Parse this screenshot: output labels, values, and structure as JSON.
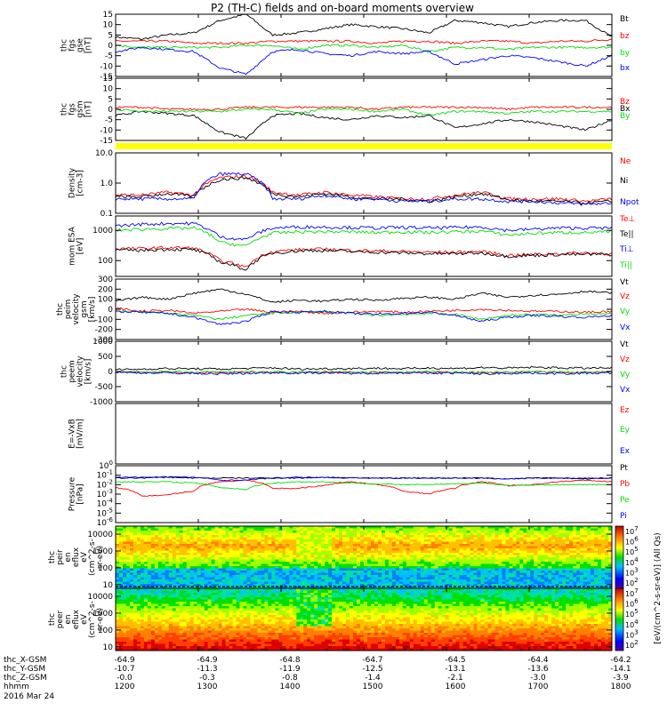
{
  "title": "P2 (TH-C) fields and on-board moments overview",
  "x_ticks": [
    "1200",
    "1300",
    "1400",
    "1500",
    "1600",
    "1700",
    "1800"
  ],
  "orbit_rows": [
    {
      "label": "thc_X-GSM",
      "values": [
        "-64.9",
        "-64.9",
        "-64.8",
        "-64.7",
        "-64.5",
        "-64.4",
        "-64.2"
      ]
    },
    {
      "label": "thc_Y-GSM",
      "values": [
        "-10.7",
        "-11.3",
        "-11.9",
        "-12.5",
        "-13.1",
        "-13.6",
        "-14.1"
      ]
    },
    {
      "label": "thc_Z-GSM",
      "values": [
        "-0.0",
        "-0.3",
        "-0.8",
        "-1.4",
        "-2.1",
        "-3.0",
        "-3.9"
      ]
    },
    {
      "label": "hhmm",
      "values": []
    }
  ],
  "date_label": "2016 Mar 24",
  "colors": {
    "black": "#000000",
    "red": "#ff0000",
    "green": "#00e000",
    "blue": "#0000ff",
    "yellow": "#ffff00"
  },
  "colorbar": {
    "label": "[eV/(cm^2-s-sr-eV)] (All Qs)",
    "upper": {
      "ticks": [
        "10^2",
        "10^3",
        "10^4",
        "10^5",
        "10^6",
        "10^7"
      ]
    },
    "lower": {
      "ticks": [
        "10^2",
        "10^3",
        "10^4",
        "10^5",
        "10^6",
        "10^7"
      ]
    }
  },
  "chart_data": [
    {
      "id": "fgs_gse",
      "type": "line",
      "ylabel": "thc fgs gse [nT]",
      "ylim": [
        -15,
        15
      ],
      "yticks": [
        "15",
        "10",
        "5",
        "0",
        "-5",
        "-10",
        "-15"
      ],
      "series": [
        {
          "name": "Bt",
          "color": "#000000",
          "values": [
            4,
            3,
            5,
            6,
            12,
            15,
            5,
            6,
            8,
            10,
            9,
            8,
            6,
            12,
            11,
            9,
            11,
            12,
            12,
            4
          ]
        },
        {
          "name": "bz",
          "color": "#ff0000",
          "values": [
            2,
            2,
            2,
            1,
            1,
            1,
            2,
            2,
            2,
            2,
            1,
            2,
            2,
            1,
            2,
            2,
            1,
            2,
            2,
            3
          ]
        },
        {
          "name": "by",
          "color": "#00e000",
          "values": [
            0,
            -1,
            -1,
            -1,
            -1,
            0,
            0,
            -2,
            0,
            0,
            -1,
            0,
            -3,
            -1,
            -1,
            -2,
            -1,
            -1,
            -1,
            -1
          ]
        },
        {
          "name": "bx",
          "color": "#0000ff",
          "values": [
            -3,
            -1,
            -2,
            -3,
            -11,
            -14,
            -3,
            -2,
            -4,
            -5,
            -3,
            -4,
            -3,
            -9,
            -7,
            -5,
            -6,
            -8,
            -10,
            -5
          ]
        }
      ]
    },
    {
      "id": "fgs_gsm",
      "type": "line",
      "ylabel": "thc fgs gsm [nT]",
      "ylim": [
        -15,
        15
      ],
      "yticks": [
        "15",
        "10",
        "5",
        "0",
        "-5",
        "-10",
        "-15"
      ],
      "series": [
        {
          "name": "Bz",
          "color": "#ff0000",
          "values": [
            1,
            1,
            0,
            0,
            0,
            1,
            1,
            1,
            1,
            1,
            0,
            1,
            1,
            1,
            1,
            0,
            1,
            1,
            1,
            1
          ]
        },
        {
          "name": "Bx",
          "color": "#000000",
          "values": [
            -3,
            -1,
            -2,
            -3,
            -11,
            -14,
            -3,
            -2,
            -4,
            -5,
            -3,
            -4,
            -3,
            -9,
            -7,
            -5,
            -6,
            -8,
            -10,
            -5
          ]
        },
        {
          "name": "By",
          "color": "#00e000",
          "values": [
            0,
            -1,
            -1,
            -1,
            -1,
            0,
            0,
            -2,
            0,
            0,
            -1,
            0,
            -3,
            -1,
            -1,
            -2,
            -1,
            -1,
            -1,
            -1
          ]
        }
      ]
    },
    {
      "id": "density",
      "type": "line",
      "ylabel": "Density [cm-3]",
      "yscale": "log",
      "ylim": [
        0.1,
        10
      ],
      "yticks": [
        "10.0",
        "1.0",
        "0.1"
      ],
      "series": [
        {
          "name": "Ne",
          "color": "#ff0000",
          "values": [
            0.4,
            0.4,
            0.5,
            0.4,
            1.5,
            1.7,
            0.5,
            0.4,
            0.5,
            0.4,
            0.35,
            0.3,
            0.3,
            0.4,
            0.5,
            0.3,
            0.3,
            0.3,
            0.25,
            0.3
          ]
        },
        {
          "name": "Ni",
          "color": "#000000",
          "values": [
            0.35,
            0.35,
            0.45,
            0.35,
            1.3,
            1.5,
            0.45,
            0.35,
            0.45,
            0.35,
            0.3,
            0.3,
            0.25,
            0.35,
            0.45,
            0.28,
            0.25,
            0.25,
            0.22,
            0.25
          ]
        },
        {
          "name": "Npot",
          "color": "#0000ff",
          "values": [
            0.3,
            0.3,
            0.3,
            0.3,
            2.0,
            2.0,
            0.3,
            0.3,
            0.4,
            0.3,
            0.3,
            0.25,
            0.25,
            0.3,
            0.3,
            0.25,
            0.25,
            0.22,
            0.2,
            0.22
          ]
        }
      ]
    },
    {
      "id": "temperature",
      "type": "line",
      "ylabel": "mom ESA [eV]",
      "yscale": "log",
      "ylim": [
        30,
        3000
      ],
      "yticks": [
        "1000",
        "100"
      ],
      "series": [
        {
          "name": "Te⊥",
          "color": "#ff0000",
          "values": [
            250,
            250,
            270,
            260,
            100,
            60,
            200,
            230,
            240,
            220,
            210,
            200,
            190,
            190,
            200,
            150,
            160,
            170,
            180,
            170
          ]
        },
        {
          "name": "Te||",
          "color": "#000000",
          "values": [
            220,
            220,
            240,
            230,
            90,
            50,
            180,
            210,
            220,
            200,
            190,
            180,
            170,
            170,
            180,
            140,
            150,
            160,
            160,
            160
          ]
        },
        {
          "name": "Ti⊥",
          "color": "#0000ff",
          "values": [
            1400,
            1600,
            1700,
            1700,
            600,
            500,
            1200,
            1300,
            1300,
            1250,
            1200,
            1250,
            1200,
            1250,
            1300,
            1000,
            1100,
            1200,
            1200,
            1200
          ]
        },
        {
          "name": "Ti||",
          "color": "#00e000",
          "values": [
            1000,
            1100,
            1150,
            1200,
            400,
            300,
            800,
            900,
            900,
            900,
            850,
            900,
            850,
            900,
            950,
            700,
            800,
            850,
            850,
            900
          ]
        }
      ]
    },
    {
      "id": "peim_velocity",
      "type": "line",
      "ylabel": "thc peim velocity gsm [km/s]",
      "ylim": [
        -300,
        300
      ],
      "yticks": [
        "300",
        "200",
        "100",
        "0",
        "-100",
        "-200",
        "-300"
      ],
      "series": [
        {
          "name": "Vt",
          "color": "#000000",
          "values": [
            80,
            120,
            100,
            160,
            200,
            150,
            70,
            90,
            80,
            100,
            90,
            110,
            120,
            100,
            160,
            120,
            140,
            150,
            180,
            160
          ]
        },
        {
          "name": "Vz",
          "color": "#ff0000",
          "values": [
            10,
            -20,
            -10,
            -40,
            -20,
            0,
            -30,
            -20,
            -40,
            -30,
            -20,
            -30,
            -20,
            -10,
            0,
            -10,
            -20,
            -20,
            -30,
            -20
          ]
        },
        {
          "name": "Vy",
          "color": "#00e000",
          "values": [
            -20,
            -30,
            -40,
            -60,
            -100,
            -60,
            -40,
            -30,
            -20,
            -40,
            -60,
            -50,
            -40,
            -50,
            -100,
            -60,
            -50,
            -60,
            -40,
            -50
          ]
        },
        {
          "name": "Vx",
          "color": "#0000ff",
          "values": [
            -20,
            -30,
            -40,
            -80,
            -150,
            -120,
            -20,
            -30,
            -20,
            -40,
            -50,
            -40,
            -30,
            -60,
            -120,
            -80,
            -60,
            -70,
            -80,
            -60
          ]
        }
      ]
    },
    {
      "id": "peem_velocity",
      "type": "line",
      "ylabel": "thc peem velocity [km/s]",
      "ylim": [
        -1000,
        1000
      ],
      "yticks": [
        "1000",
        "500",
        "0",
        "-500",
        "-1000"
      ],
      "series": [
        {
          "name": "Vt",
          "color": "#000000",
          "values": [
            60,
            80,
            100,
            90,
            80,
            100,
            120,
            80,
            90,
            100,
            110,
            90,
            120,
            100,
            130,
            110,
            140,
            120,
            110,
            120
          ]
        },
        {
          "name": "Vz",
          "color": "#ff0000",
          "values": [
            -20,
            -30,
            -20,
            -40,
            -30,
            -20,
            -30,
            -40,
            -20,
            -30,
            -40,
            -30,
            -20,
            -30,
            -40,
            -30,
            -20,
            -30,
            -30,
            -20
          ]
        },
        {
          "name": "Vy",
          "color": "#00e000",
          "values": [
            -10,
            -20,
            -10,
            -30,
            -20,
            -10,
            -20,
            -30,
            -10,
            -20,
            -30,
            -20,
            -10,
            -20,
            -30,
            -20,
            -10,
            -20,
            -20,
            -10
          ]
        },
        {
          "name": "Vx",
          "color": "#0000ff",
          "values": [
            -30,
            -40,
            -50,
            -60,
            -80,
            -60,
            -40,
            -50,
            -40,
            -60,
            -50,
            -40,
            -60,
            -50,
            -80,
            -60,
            -50,
            -70,
            -60,
            -50
          ]
        }
      ]
    },
    {
      "id": "efield",
      "type": "line",
      "ylabel": "E=-VxB [mV/m]",
      "ylim": [
        -1,
        1
      ],
      "yticks": [],
      "series": [
        {
          "name": "Ez",
          "color": "#ff0000",
          "values": []
        },
        {
          "name": "Ey",
          "color": "#00e000",
          "values": []
        },
        {
          "name": "Ex",
          "color": "#0000ff",
          "values": []
        }
      ]
    },
    {
      "id": "pressure",
      "type": "line",
      "ylabel": "Pressure [nPa]",
      "yscale": "log",
      "ylim": [
        1e-06,
        1
      ],
      "yticks": [
        "10^0",
        "10^-1",
        "10^-2",
        "10^-3",
        "10^-4",
        "10^-5",
        "10^-6"
      ],
      "series": [
        {
          "name": "Pt",
          "color": "#000000",
          "values": [
            0.05,
            0.05,
            0.06,
            0.05,
            0.05,
            0.05,
            0.05,
            0.05,
            0.06,
            0.05,
            0.05,
            0.05,
            0.05,
            0.05,
            0.05,
            0.04,
            0.05,
            0.05,
            0.04,
            0.05
          ]
        },
        {
          "name": "Pb",
          "color": "#ff0000",
          "values": [
            0.005,
            0.0006,
            0.0008,
            0.002,
            0.02,
            0.03,
            0.004,
            0.004,
            0.008,
            0.02,
            0.01,
            0.002,
            0.001,
            0.004,
            0.02,
            0.008,
            0.01,
            0.02,
            0.03,
            0.02
          ]
        },
        {
          "name": "Pe",
          "color": "#00e000",
          "values": [
            0.02,
            0.02,
            0.02,
            0.015,
            0.005,
            0.003,
            0.015,
            0.02,
            0.02,
            0.015,
            0.012,
            0.01,
            0.01,
            0.012,
            0.015,
            0.008,
            0.009,
            0.01,
            0.01,
            0.01
          ]
        },
        {
          "name": "Pi",
          "color": "#0000ff",
          "values": [
            0.06,
            0.06,
            0.07,
            0.06,
            0.03,
            0.03,
            0.05,
            0.06,
            0.06,
            0.05,
            0.05,
            0.05,
            0.05,
            0.05,
            0.05,
            0.04,
            0.05,
            0.05,
            0.05,
            0.05
          ]
        }
      ]
    },
    {
      "id": "peir_en_eflux",
      "type": "heatmap",
      "ylabel": "thc peir en eflux eV (cm^2-s-sr-eV)",
      "yscale": "log",
      "ylim": [
        6,
        30000
      ],
      "yticks": [
        "10000",
        "1000",
        "100",
        "10"
      ]
    },
    {
      "id": "peer_en_eflux",
      "type": "heatmap",
      "ylabel": "thc peer en eflux eV (cm^2-s-sr-eV)",
      "yscale": "log",
      "ylim": [
        6,
        30000
      ],
      "yticks": [
        "10000",
        "1000",
        "100",
        "10"
      ]
    }
  ]
}
